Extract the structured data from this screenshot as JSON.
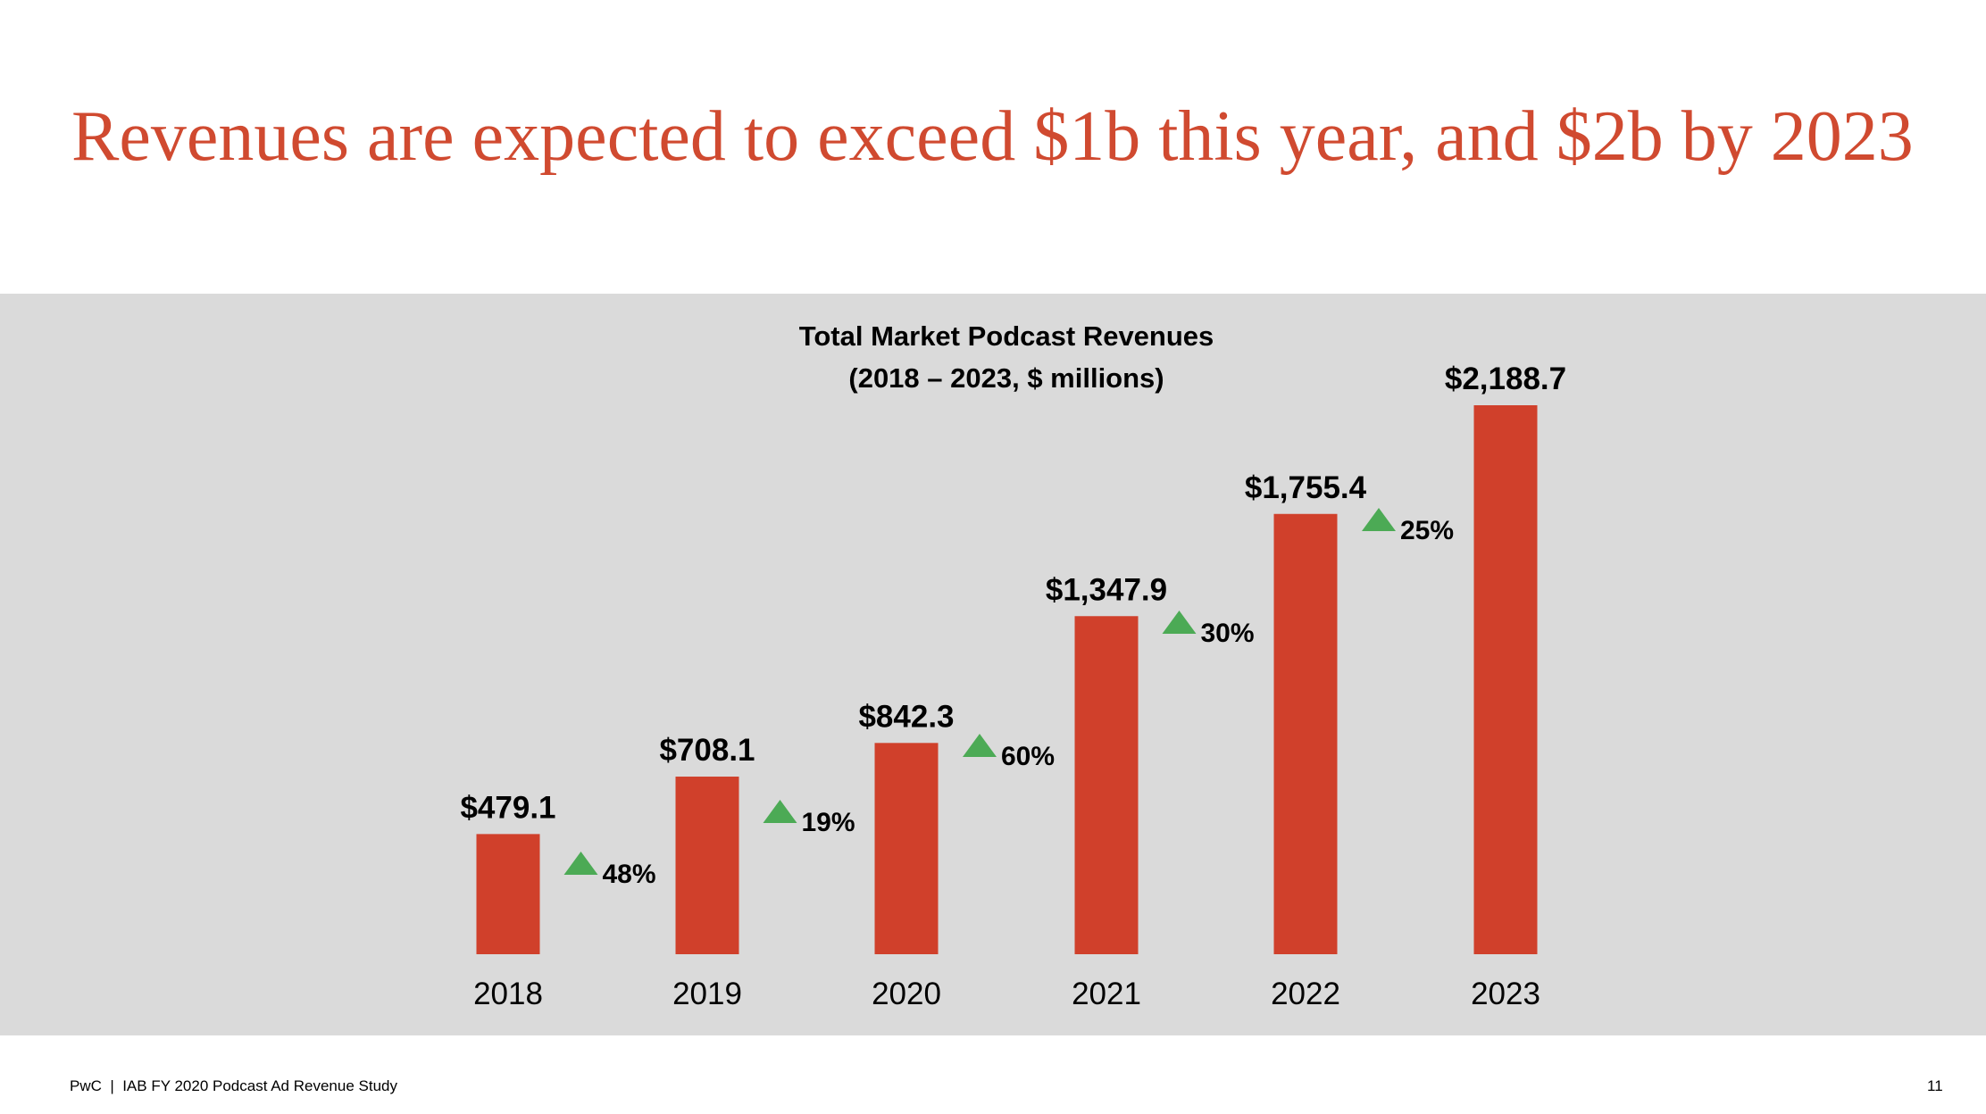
{
  "slide": {
    "title": "Revenues are expected to exceed $1b this year, and $2b by 2023",
    "footer": "PwC  |  IAB FY 2020 Podcast Ad Revenue Study",
    "page_number": "11"
  },
  "colors": {
    "title": "#d04a30",
    "bar": "#d0402b",
    "panel": "#dadada",
    "growth_arrow": "#4caa55"
  },
  "chart_data": {
    "type": "bar",
    "title": "Total Market Podcast Revenues",
    "subtitle": "(2018 – 2023, $ millions)",
    "categories": [
      "2018",
      "2019",
      "2020",
      "2021",
      "2022",
      "2023"
    ],
    "values": [
      479.1,
      708.1,
      842.3,
      1347.9,
      1755.4,
      2188.7
    ],
    "data_labels": [
      "$479.1",
      "$708.1",
      "$842.3",
      "$1,347.9",
      "$1,755.4",
      "$2,188.7"
    ],
    "growth_labels": [
      "48%",
      "19%",
      "60%",
      "30%",
      "25%"
    ],
    "growth_icon": "up-triangle-icon",
    "ylim": [
      0,
      2188.7
    ],
    "grid": false,
    "legend": "none"
  }
}
